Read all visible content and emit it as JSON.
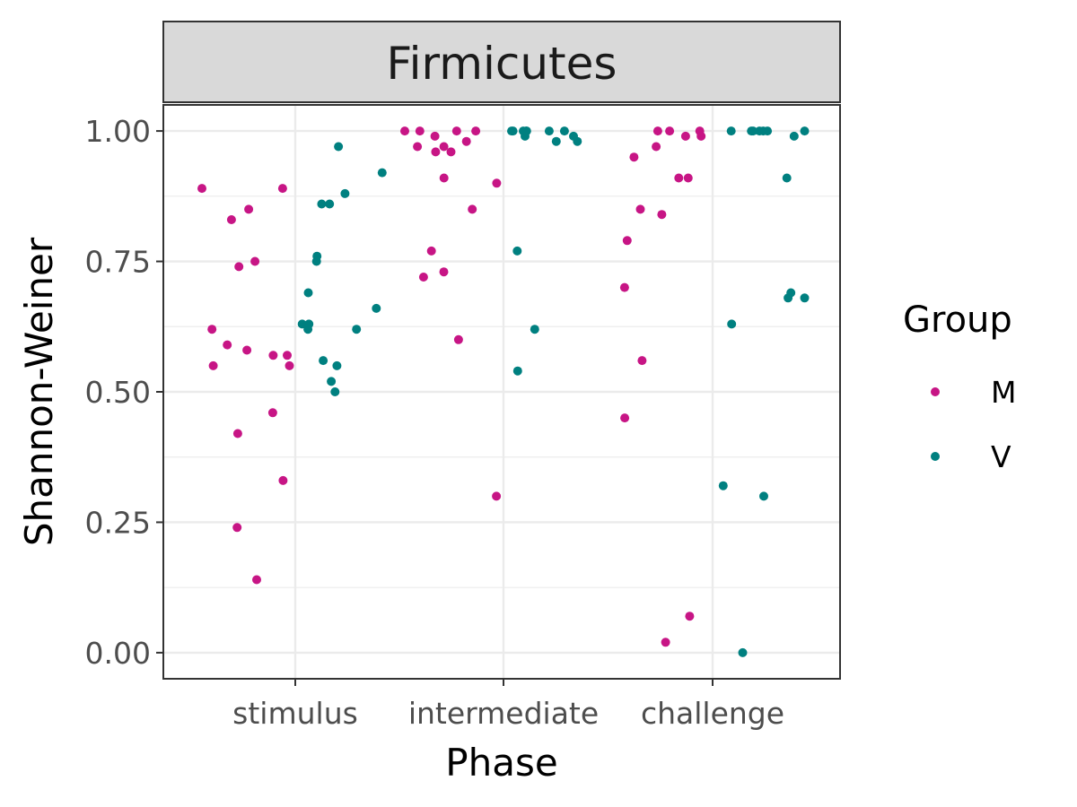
{
  "chart_data": {
    "type": "scatter",
    "facet_title": "Firmicutes",
    "xlabel": "Phase",
    "ylabel": "Shannon-Weiner",
    "categories": [
      "stimulus",
      "intermediate",
      "challenge"
    ],
    "ylim": [
      -0.05,
      1.05
    ],
    "y_ticks": [
      "0.00",
      "0.25",
      "0.50",
      "0.75",
      "1.00"
    ],
    "grid": true,
    "jitter": true,
    "legend": {
      "title": "Group",
      "position": "right"
    },
    "series": [
      {
        "name": "M",
        "color": "#C71585",
        "points": [
          {
            "x": "stimulus",
            "y": 0.89
          },
          {
            "x": "stimulus",
            "y": 0.89
          },
          {
            "x": "stimulus",
            "y": 0.85
          },
          {
            "x": "stimulus",
            "y": 0.83
          },
          {
            "x": "stimulus",
            "y": 0.74
          },
          {
            "x": "stimulus",
            "y": 0.75
          },
          {
            "x": "stimulus",
            "y": 0.62
          },
          {
            "x": "stimulus",
            "y": 0.59
          },
          {
            "x": "stimulus",
            "y": 0.58
          },
          {
            "x": "stimulus",
            "y": 0.57
          },
          {
            "x": "stimulus",
            "y": 0.57
          },
          {
            "x": "stimulus",
            "y": 0.55
          },
          {
            "x": "stimulus",
            "y": 0.55
          },
          {
            "x": "stimulus",
            "y": 0.46
          },
          {
            "x": "stimulus",
            "y": 0.42
          },
          {
            "x": "stimulus",
            "y": 0.33
          },
          {
            "x": "stimulus",
            "y": 0.24
          },
          {
            "x": "stimulus",
            "y": 0.14
          },
          {
            "x": "intermediate",
            "y": 0.99
          },
          {
            "x": "intermediate",
            "y": 1.0
          },
          {
            "x": "intermediate",
            "y": 1.0
          },
          {
            "x": "intermediate",
            "y": 0.98
          },
          {
            "x": "intermediate",
            "y": 0.97
          },
          {
            "x": "intermediate",
            "y": 0.97
          },
          {
            "x": "intermediate",
            "y": 0.96
          },
          {
            "x": "intermediate",
            "y": 0.96
          },
          {
            "x": "intermediate",
            "y": 1.0
          },
          {
            "x": "intermediate",
            "y": 1.0
          },
          {
            "x": "intermediate",
            "y": 0.91
          },
          {
            "x": "intermediate",
            "y": 0.9
          },
          {
            "x": "intermediate",
            "y": 0.85
          },
          {
            "x": "intermediate",
            "y": 0.77
          },
          {
            "x": "intermediate",
            "y": 0.73
          },
          {
            "x": "intermediate",
            "y": 0.72
          },
          {
            "x": "intermediate",
            "y": 0.6
          },
          {
            "x": "intermediate",
            "y": 0.3
          },
          {
            "x": "challenge",
            "y": 1.0
          },
          {
            "x": "challenge",
            "y": 1.0
          },
          {
            "x": "challenge",
            "y": 0.99
          },
          {
            "x": "challenge",
            "y": 1.0
          },
          {
            "x": "challenge",
            "y": 0.99
          },
          {
            "x": "challenge",
            "y": 0.97
          },
          {
            "x": "challenge",
            "y": 0.95
          },
          {
            "x": "challenge",
            "y": 0.91
          },
          {
            "x": "challenge",
            "y": 0.91
          },
          {
            "x": "challenge",
            "y": 0.85
          },
          {
            "x": "challenge",
            "y": 0.84
          },
          {
            "x": "challenge",
            "y": 0.79
          },
          {
            "x": "challenge",
            "y": 0.7
          },
          {
            "x": "challenge",
            "y": 0.56
          },
          {
            "x": "challenge",
            "y": 0.45
          },
          {
            "x": "challenge",
            "y": 0.07
          },
          {
            "x": "challenge",
            "y": 0.02
          }
        ]
      },
      {
        "name": "V",
        "color": "#008080",
        "points": [
          {
            "x": "stimulus",
            "y": 0.97
          },
          {
            "x": "stimulus",
            "y": 0.92
          },
          {
            "x": "stimulus",
            "y": 0.88
          },
          {
            "x": "stimulus",
            "y": 0.86
          },
          {
            "x": "stimulus",
            "y": 0.86
          },
          {
            "x": "stimulus",
            "y": 0.76
          },
          {
            "x": "stimulus",
            "y": 0.75
          },
          {
            "x": "stimulus",
            "y": 0.69
          },
          {
            "x": "stimulus",
            "y": 0.66
          },
          {
            "x": "stimulus",
            "y": 0.63
          },
          {
            "x": "stimulus",
            "y": 0.63
          },
          {
            "x": "stimulus",
            "y": 0.62
          },
          {
            "x": "stimulus",
            "y": 0.62
          },
          {
            "x": "stimulus",
            "y": 0.56
          },
          {
            "x": "stimulus",
            "y": 0.55
          },
          {
            "x": "stimulus",
            "y": 0.52
          },
          {
            "x": "stimulus",
            "y": 0.5
          },
          {
            "x": "intermediate",
            "y": 0.98
          },
          {
            "x": "intermediate",
            "y": 0.99
          },
          {
            "x": "intermediate",
            "y": 1.0
          },
          {
            "x": "intermediate",
            "y": 1.0
          },
          {
            "x": "intermediate",
            "y": 1.0
          },
          {
            "x": "intermediate",
            "y": 1.0
          },
          {
            "x": "intermediate",
            "y": 0.99
          },
          {
            "x": "intermediate",
            "y": 1.0
          },
          {
            "x": "intermediate",
            "y": 1.0
          },
          {
            "x": "intermediate",
            "y": 0.98
          },
          {
            "x": "intermediate",
            "y": 1.0
          },
          {
            "x": "intermediate",
            "y": 0.77
          },
          {
            "x": "intermediate",
            "y": 0.62
          },
          {
            "x": "intermediate",
            "y": 0.54
          },
          {
            "x": "challenge",
            "y": 1.0
          },
          {
            "x": "challenge",
            "y": 1.0
          },
          {
            "x": "challenge",
            "y": 1.0
          },
          {
            "x": "challenge",
            "y": 1.0
          },
          {
            "x": "challenge",
            "y": 1.0
          },
          {
            "x": "challenge",
            "y": 0.99
          },
          {
            "x": "challenge",
            "y": 1.0
          },
          {
            "x": "challenge",
            "y": 1.0
          },
          {
            "x": "challenge",
            "y": 0.91
          },
          {
            "x": "challenge",
            "y": 0.69
          },
          {
            "x": "challenge",
            "y": 0.68
          },
          {
            "x": "challenge",
            "y": 0.68
          },
          {
            "x": "challenge",
            "y": 0.63
          },
          {
            "x": "challenge",
            "y": 0.32
          },
          {
            "x": "challenge",
            "y": 0.3
          },
          {
            "x": "challenge",
            "y": 0.0
          }
        ]
      }
    ]
  }
}
